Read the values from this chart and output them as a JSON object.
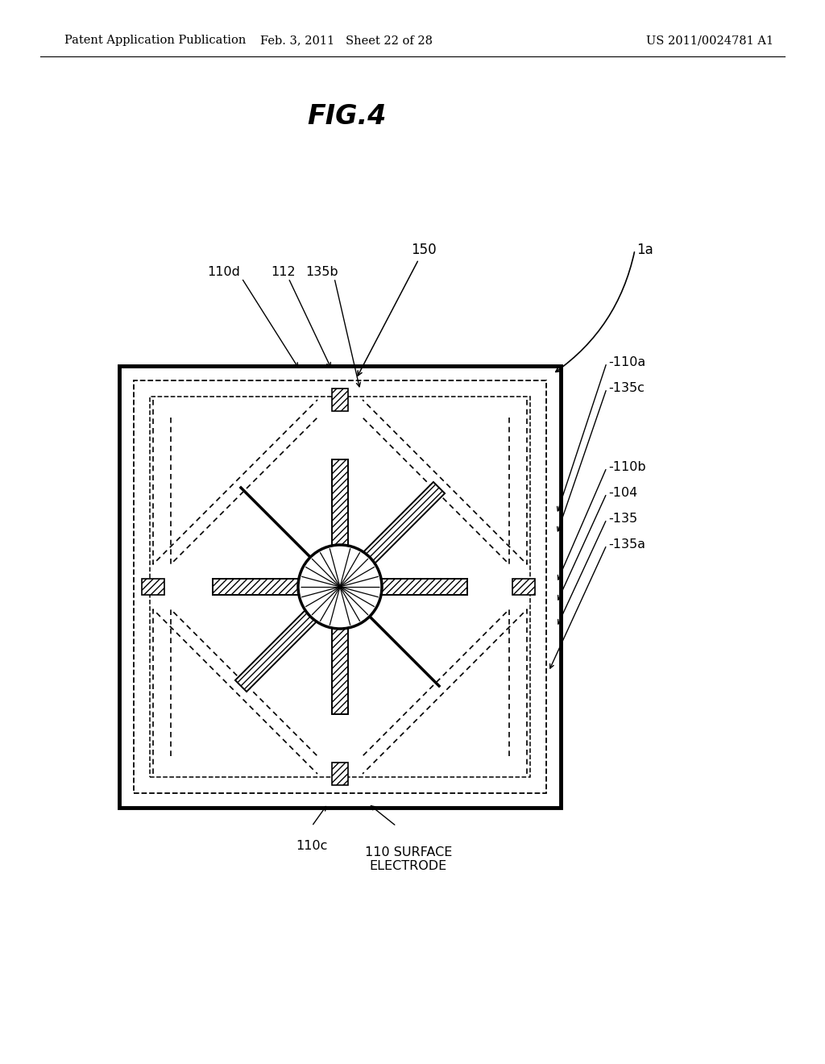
{
  "bg_color": "#ffffff",
  "header_left": "Patent Application Publication",
  "header_middle": "Feb. 3, 2011   Sheet 22 of 28",
  "header_right": "US 2011/0024781 A1",
  "fig_title": "FIG.4",
  "label_1a": "1a",
  "label_150": "150",
  "label_110d": "110d",
  "label_112": "112",
  "label_135b": "135b",
  "label_110a": "-110a",
  "label_135c": "-135c",
  "label_110b": "-110b",
  "label_104": "-104",
  "label_135": "-135",
  "label_135a": "-135a",
  "label_110c": "110c",
  "label_110_surface": "110 SURFACE\nELECTRODE"
}
